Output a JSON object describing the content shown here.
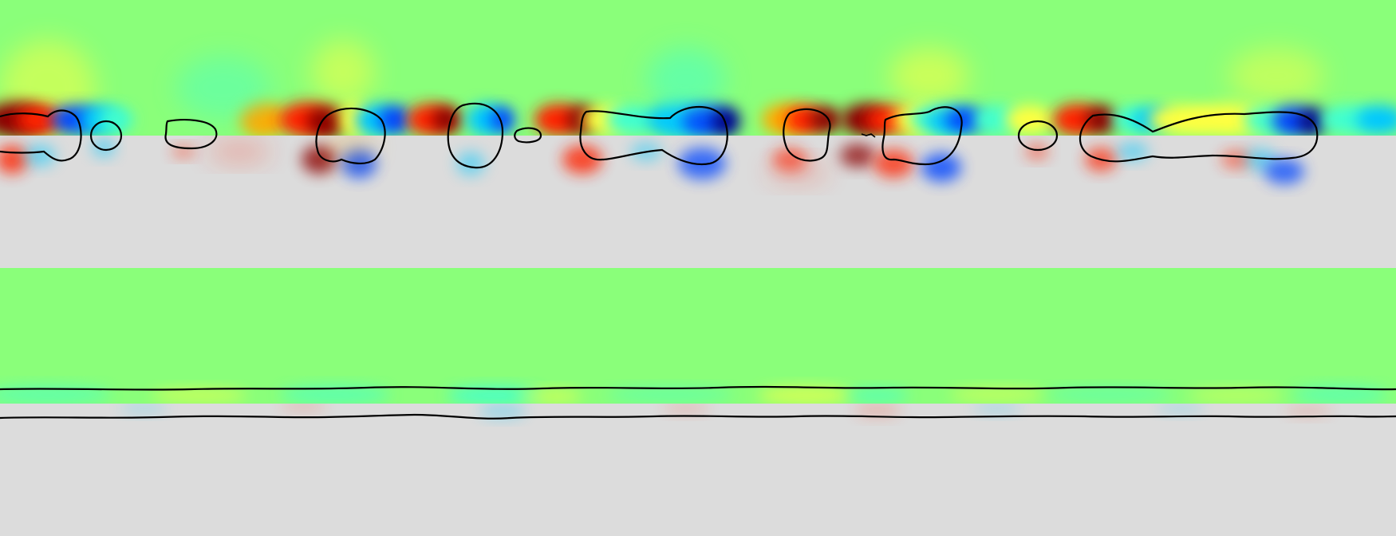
{
  "figure": {
    "panels": [
      {
        "name": "panel-top",
        "upper_field": "vertical-velocity-jet-colormap",
        "lower_field": "vorticity-diverging-colormap",
        "interface": "broken-into-droplets"
      },
      {
        "name": "panel-bottom",
        "upper_field": "vertical-velocity-jet-colormap",
        "lower_field": "vorticity-diverging-colormap",
        "interface": "smooth-wavy-thread"
      }
    ]
  },
  "colors": {
    "jet_background": "#8aff7a",
    "grey_background": "#dcdcdc",
    "positive_strong": "#8b0000",
    "positive": "#ff2200",
    "positive_mid": "#ffaa00",
    "positive_weak": "#ffff40",
    "negative_weak": "#40ffd0",
    "negative_mid": "#00c8ff",
    "negative": "#0044ff",
    "negative_strong": "#00008b",
    "interface_line": "#000000"
  }
}
